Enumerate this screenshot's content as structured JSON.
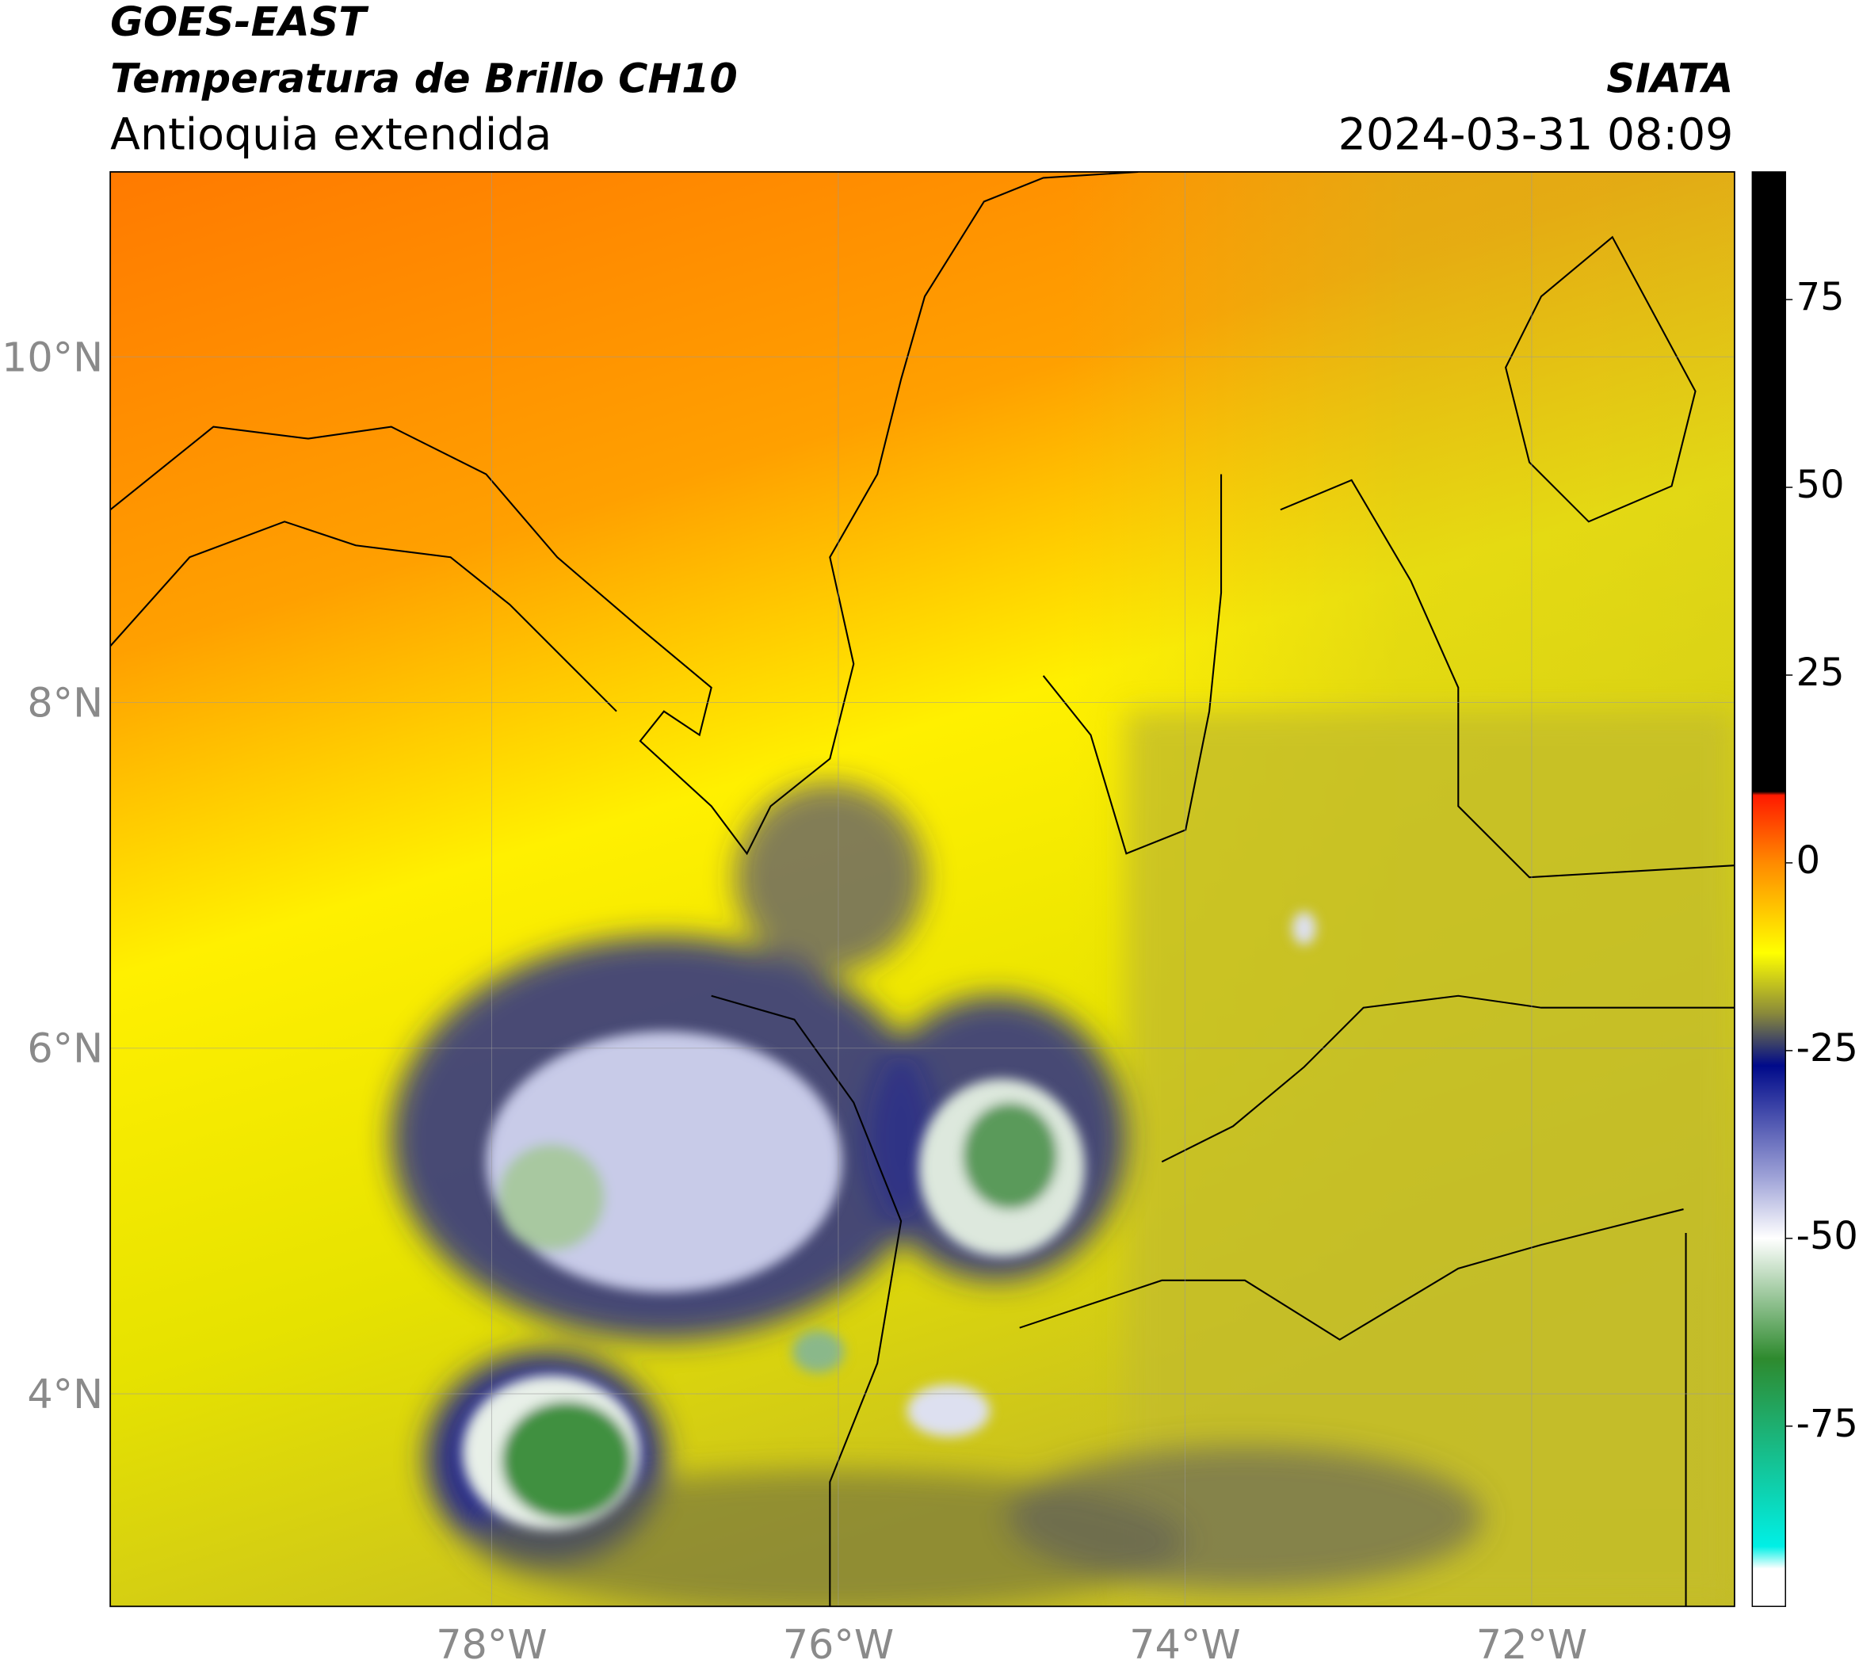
{
  "header": {
    "satellite": "GOES-EAST",
    "product": "Temperatura de Brillo CH10",
    "region": "Antioquia extendida",
    "source": "SIATA",
    "datetime": "2024-03-31 08:09"
  },
  "map": {
    "xlim": [
      -80.2,
      -70.83
    ],
    "ylim": [
      2.77,
      11.07
    ],
    "xticks": [
      {
        "value": -78,
        "label": "78°W"
      },
      {
        "value": -76,
        "label": "76°W"
      },
      {
        "value": -74,
        "label": "74°W"
      },
      {
        "value": -72,
        "label": "72°W"
      }
    ],
    "yticks": [
      {
        "value": 4,
        "label": "4°N"
      },
      {
        "value": 6,
        "label": "6°N"
      },
      {
        "value": 8,
        "label": "8°N"
      },
      {
        "value": 10,
        "label": "10°N"
      }
    ],
    "grid": true
  },
  "colorbar": {
    "lim": [
      -99,
      92
    ],
    "ticks": [
      75,
      50,
      25,
      0,
      -25,
      -50,
      -75
    ],
    "stops": [
      {
        "value": 92,
        "color": "#000000"
      },
      {
        "value": 9.5,
        "color": "#000000"
      },
      {
        "value": 9,
        "color": "#ff1a00"
      },
      {
        "value": 0,
        "color": "#ff8a00"
      },
      {
        "value": -12,
        "color": "#ffff00"
      },
      {
        "value": -20,
        "color": "#8a8a3a"
      },
      {
        "value": -27,
        "color": "#000a8a"
      },
      {
        "value": -42,
        "color": "#a0a4d8"
      },
      {
        "value": -50,
        "color": "#ffffff"
      },
      {
        "value": -66,
        "color": "#2e8a2e"
      },
      {
        "value": -91,
        "color": "#00f0e6"
      },
      {
        "value": -94,
        "color": "#ffffff"
      },
      {
        "value": -99,
        "color": "#ffffff"
      }
    ]
  }
}
